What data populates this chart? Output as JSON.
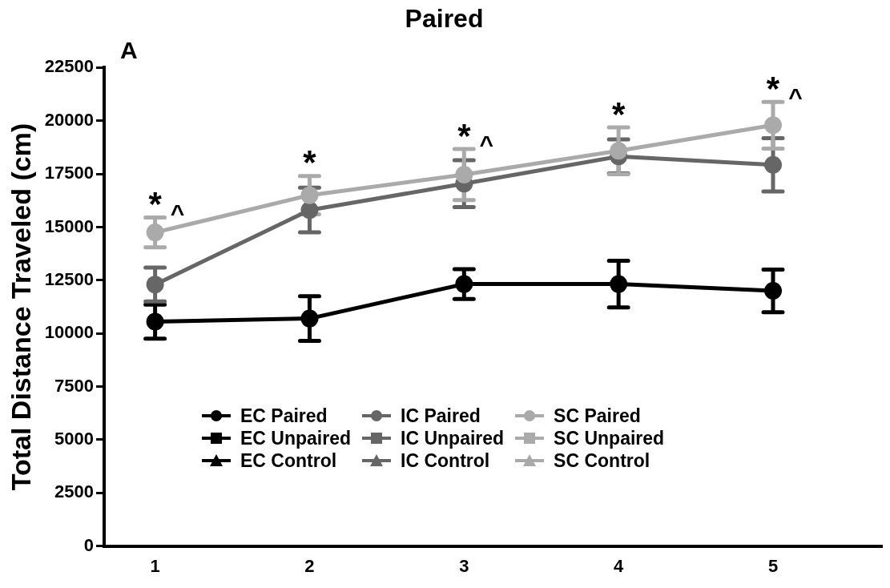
{
  "chart_data": {
    "type": "line",
    "title": "Paired",
    "ylabel": "Total Distance Traveled (cm)",
    "x": [
      1,
      2,
      3,
      4,
      5
    ],
    "xlim": [
      0.67,
      5.7
    ],
    "xticks": [
      1,
      2,
      3,
      4,
      5
    ],
    "ylim": [
      0,
      22500
    ],
    "yticks": [
      0,
      2500,
      5000,
      7500,
      10000,
      12500,
      15000,
      17500,
      20000,
      22500
    ],
    "grid": false,
    "legend": "bottom",
    "line_style": "solid",
    "series": [
      {
        "name": "EC Paired",
        "color": "#000000",
        "marker": "circle",
        "values": [
          10550,
          10700,
          12320,
          12320,
          12000
        ],
        "errors": [
          800,
          1050,
          700,
          1100,
          1000
        ]
      },
      {
        "name": "EC Unpaired",
        "color": "#000000",
        "marker": "square",
        "values": [
          null,
          null,
          null,
          null,
          null
        ]
      },
      {
        "name": "EC Control",
        "color": "#000000",
        "marker": "triangle",
        "values": [
          null,
          null,
          null,
          null,
          null
        ]
      },
      {
        "name": "IC Paired",
        "color": "#666666",
        "marker": "circle",
        "values": [
          12300,
          15800,
          17040,
          18320,
          17930
        ],
        "errors": [
          800,
          1050,
          1100,
          800,
          1250
        ]
      },
      {
        "name": "IC Unpaired",
        "color": "#666666",
        "marker": "square",
        "values": [
          null,
          null,
          null,
          null,
          null
        ]
      },
      {
        "name": "IC Control",
        "color": "#666666",
        "marker": "triangle",
        "values": [
          null,
          null,
          null,
          null,
          null
        ]
      },
      {
        "name": "SC Paired",
        "color": "#aaaaaa",
        "marker": "circle",
        "values": [
          14750,
          16500,
          17470,
          18590,
          19790
        ],
        "errors": [
          700,
          900,
          1200,
          1100,
          1100
        ]
      },
      {
        "name": "SC Unpaired",
        "color": "#aaaaaa",
        "marker": "square",
        "values": [
          null,
          null,
          null,
          null,
          null
        ]
      },
      {
        "name": "SC Control",
        "color": "#aaaaaa",
        "marker": "triangle",
        "values": [
          null,
          null,
          null,
          null,
          null
        ]
      }
    ],
    "annotations": [
      "A",
      "*^",
      "*",
      "*^",
      "*",
      "*^"
    ]
  }
}
